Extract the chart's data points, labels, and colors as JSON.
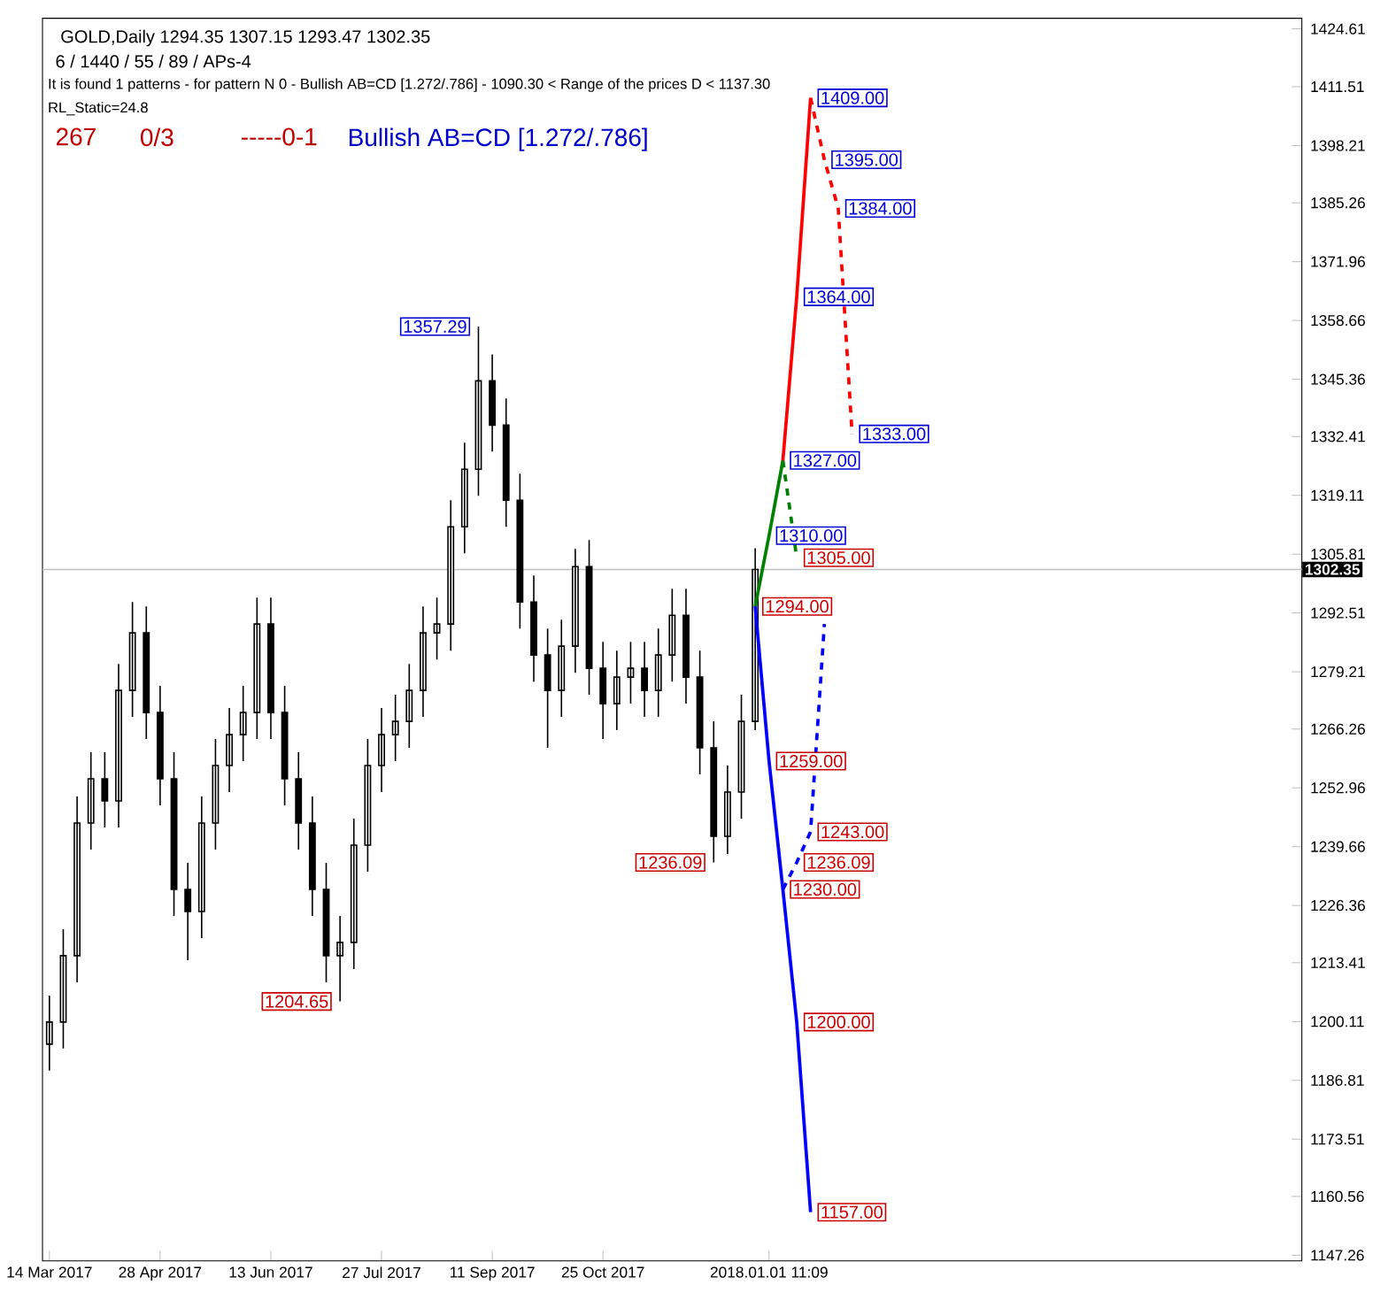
{
  "chart_data": {
    "type": "candlestick",
    "title": "GOLD,Daily 1294.35 1307.15 1293.47 1302.35",
    "subtitle": "6 / 1440 / 55 / 89 / APs-4",
    "categories": [
      "14 Mar 2017",
      null,
      null,
      null,
      null,
      null,
      null,
      null,
      "28 Apr 2017",
      null,
      null,
      null,
      null,
      null,
      null,
      null,
      "13 Jun 2017",
      null,
      null,
      null,
      null,
      null,
      null,
      null,
      "27 Jul 2017",
      null,
      null,
      null,
      null,
      null,
      null,
      null,
      "11 Sep 2017",
      null,
      null,
      null,
      null,
      null,
      null,
      null,
      "25 Oct 2017",
      null,
      null,
      null,
      null,
      null,
      null,
      null,
      null,
      null,
      null,
      null,
      "2018.01.01 11:09",
      null,
      null,
      null,
      null,
      null,
      null,
      null,
      null,
      null,
      null,
      null,
      null,
      null,
      null,
      null,
      null,
      null,
      null,
      null,
      null,
      null,
      null,
      null,
      null,
      null,
      null,
      null,
      null,
      null,
      null,
      null,
      null,
      null,
      null,
      null,
      null,
      null,
      null
    ],
    "ohlc": [
      [
        1195,
        1206,
        1189,
        1200
      ],
      [
        1200,
        1221,
        1194,
        1215
      ],
      [
        1215,
        1251,
        1209,
        1245
      ],
      [
        1245,
        1261,
        1239,
        1255
      ],
      [
        1255,
        1261,
        1244,
        1250
      ],
      [
        1250,
        1281,
        1244,
        1275
      ],
      [
        1275,
        1295,
        1269,
        1288
      ],
      [
        1288,
        1294,
        1264,
        1270
      ],
      [
        1270,
        1276,
        1249,
        1255
      ],
      [
        1255,
        1261,
        1224,
        1230
      ],
      [
        1230,
        1236,
        1214,
        1225
      ],
      [
        1225,
        1251,
        1219,
        1245
      ],
      [
        1245,
        1264,
        1239,
        1258
      ],
      [
        1258,
        1271,
        1252,
        1265
      ],
      [
        1265,
        1276,
        1259,
        1270
      ],
      [
        1270,
        1296,
        1264,
        1290
      ],
      [
        1290,
        1296,
        1264,
        1270
      ],
      [
        1270,
        1276,
        1249,
        1255
      ],
      [
        1255,
        1261,
        1239,
        1245
      ],
      [
        1245,
        1251,
        1224,
        1230
      ],
      [
        1230,
        1236,
        1209,
        1215
      ],
      [
        1215,
        1224,
        1204.65,
        1218
      ],
      [
        1218,
        1246,
        1212,
        1240
      ],
      [
        1240,
        1264,
        1234,
        1258
      ],
      [
        1258,
        1271,
        1252,
        1265
      ],
      [
        1265,
        1274,
        1259,
        1268
      ],
      [
        1268,
        1281,
        1262,
        1275
      ],
      [
        1275,
        1294,
        1269,
        1288
      ],
      [
        1288,
        1296,
        1282,
        1290
      ],
      [
        1290,
        1318,
        1284,
        1312
      ],
      [
        1312,
        1331,
        1306,
        1325
      ],
      [
        1325,
        1357.29,
        1319,
        1345
      ],
      [
        1345,
        1351,
        1329,
        1335
      ],
      [
        1335,
        1341,
        1312,
        1318
      ],
      [
        1318,
        1324,
        1289,
        1295
      ],
      [
        1295,
        1301,
        1277,
        1283
      ],
      [
        1283,
        1289,
        1262,
        1275
      ],
      [
        1275,
        1291,
        1269,
        1285
      ],
      [
        1285,
        1307,
        1279,
        1303
      ],
      [
        1303,
        1309,
        1274,
        1280
      ],
      [
        1280,
        1286,
        1264,
        1272
      ],
      [
        1272,
        1284,
        1266,
        1278
      ],
      [
        1278,
        1286,
        1272,
        1280
      ],
      [
        1280,
        1286,
        1269,
        1275
      ],
      [
        1275,
        1289,
        1269,
        1283
      ],
      [
        1283,
        1298,
        1277,
        1292
      ],
      [
        1292,
        1298,
        1272,
        1278
      ],
      [
        1278,
        1284,
        1256,
        1262
      ],
      [
        1262,
        1268,
        1236.09,
        1242
      ],
      [
        1242,
        1258,
        1238,
        1252
      ],
      [
        1252,
        1274,
        1246,
        1268
      ],
      [
        1268,
        1307.15,
        1266,
        1302.35
      ],
      null,
      null,
      null,
      null,
      null,
      null,
      null,
      null,
      null,
      null,
      null,
      null,
      null,
      null,
      null,
      null,
      null,
      null,
      null,
      null,
      null,
      null,
      null,
      null,
      null,
      null,
      null,
      null,
      null,
      null,
      null,
      null,
      null,
      null,
      null,
      null,
      null,
      null,
      null
    ],
    "series": [
      {
        "type": "line",
        "color": "#008000",
        "line_style": "solid",
        "values": [
          null,
          null,
          null,
          null,
          null,
          null,
          null,
          null,
          null,
          null,
          null,
          null,
          null,
          null,
          null,
          null,
          null,
          null,
          null,
          null,
          null,
          null,
          null,
          null,
          null,
          null,
          null,
          null,
          null,
          null,
          null,
          null,
          null,
          null,
          null,
          null,
          null,
          null,
          null,
          null,
          null,
          null,
          null,
          null,
          null,
          null,
          null,
          null,
          null,
          null,
          null,
          1294,
          1310,
          1327,
          null,
          null,
          null,
          null,
          null,
          null,
          null,
          null,
          null,
          null,
          null,
          null,
          null,
          null,
          null,
          null,
          null,
          null,
          null,
          null,
          null,
          null,
          null,
          null,
          null,
          null,
          null,
          null,
          null,
          null,
          null,
          null,
          null,
          null,
          null,
          null,
          null
        ],
        "value_labels": [
          null,
          null,
          null,
          null,
          null,
          null,
          null,
          null,
          null,
          null,
          null,
          null,
          null,
          null,
          null,
          null,
          null,
          null,
          null,
          null,
          null,
          null,
          null,
          null,
          null,
          null,
          null,
          null,
          null,
          null,
          null,
          null,
          null,
          null,
          null,
          null,
          null,
          null,
          null,
          null,
          null,
          null,
          null,
          null,
          null,
          null,
          null,
          null,
          null,
          null,
          null,
          null,
          "1310.00",
          null,
          null,
          null,
          null,
          null,
          null,
          null,
          null,
          null,
          null,
          null,
          null,
          null,
          null,
          null,
          null,
          null,
          null,
          null,
          null,
          null,
          null,
          null,
          null,
          null,
          null,
          null,
          null,
          null,
          null,
          null,
          null,
          null,
          null,
          null,
          null,
          null,
          null
        ]
      },
      {
        "type": "line",
        "color": "#008000",
        "line_style": "dashed",
        "values": [
          null,
          null,
          null,
          null,
          null,
          null,
          null,
          null,
          null,
          null,
          null,
          null,
          null,
          null,
          null,
          null,
          null,
          null,
          null,
          null,
          null,
          null,
          null,
          null,
          null,
          null,
          null,
          null,
          null,
          null,
          null,
          null,
          null,
          null,
          null,
          null,
          null,
          null,
          null,
          null,
          null,
          null,
          null,
          null,
          null,
          null,
          null,
          null,
          null,
          null,
          null,
          null,
          null,
          1327,
          1305,
          null,
          null,
          null,
          null,
          null,
          null,
          null,
          null,
          null,
          null,
          null,
          null,
          null,
          null,
          null,
          null,
          null,
          null,
          null,
          null,
          null,
          null,
          null,
          null,
          null,
          null,
          null,
          null,
          null,
          null,
          null,
          null,
          null,
          null,
          null,
          null
        ],
        "value_labels": [
          null,
          null,
          null,
          null,
          null,
          null,
          null,
          null,
          null,
          null,
          null,
          null,
          null,
          null,
          null,
          null,
          null,
          null,
          null,
          null,
          null,
          null,
          null,
          null,
          null,
          null,
          null,
          null,
          null,
          null,
          null,
          null,
          null,
          null,
          null,
          null,
          null,
          null,
          null,
          null,
          null,
          null,
          null,
          null,
          null,
          null,
          null,
          null,
          null,
          null,
          null,
          null,
          null,
          null,
          "1305.00",
          null,
          null,
          null,
          null,
          null,
          null,
          null,
          null,
          null,
          null,
          null,
          null,
          null,
          null,
          null,
          null,
          null,
          null,
          null,
          null,
          null,
          null,
          null,
          null,
          null,
          null,
          null,
          null,
          null,
          null,
          null,
          null,
          null,
          null,
          null,
          null
        ]
      },
      {
        "type": "line",
        "color": "#ff0000",
        "line_style": "solid",
        "values": [
          null,
          null,
          null,
          null,
          null,
          null,
          null,
          null,
          null,
          null,
          null,
          null,
          null,
          null,
          null,
          null,
          null,
          null,
          null,
          null,
          null,
          null,
          null,
          null,
          null,
          null,
          null,
          null,
          null,
          null,
          null,
          null,
          null,
          null,
          null,
          null,
          null,
          null,
          null,
          null,
          null,
          null,
          null,
          null,
          null,
          null,
          null,
          null,
          null,
          null,
          null,
          null,
          null,
          1327,
          1364,
          1409,
          null,
          null,
          null,
          null,
          null,
          null,
          null,
          null,
          null,
          null,
          null,
          null,
          null,
          null,
          null,
          null,
          null,
          null,
          null,
          null,
          null,
          null,
          null,
          null,
          null,
          null,
          null,
          null,
          null,
          null,
          null,
          null,
          null,
          null,
          null
        ],
        "value_labels": [
          null,
          null,
          null,
          null,
          null,
          null,
          null,
          null,
          null,
          null,
          null,
          null,
          null,
          null,
          null,
          null,
          null,
          null,
          null,
          null,
          null,
          null,
          null,
          null,
          null,
          null,
          null,
          null,
          null,
          null,
          null,
          null,
          null,
          null,
          null,
          null,
          null,
          null,
          null,
          null,
          null,
          null,
          null,
          null,
          null,
          null,
          null,
          null,
          null,
          null,
          null,
          null,
          null,
          "1327.00",
          "1364.00",
          "1409.00",
          null,
          null,
          null,
          null,
          null,
          null,
          null,
          null,
          null,
          null,
          null,
          null,
          null,
          null,
          null,
          null,
          null,
          null,
          null,
          null,
          null,
          null,
          null,
          null,
          null,
          null,
          null,
          null,
          null,
          null,
          null,
          null,
          null,
          null,
          null
        ]
      },
      {
        "type": "line",
        "color": "#ff0000",
        "line_style": "dashed",
        "values": [
          null,
          null,
          null,
          null,
          null,
          null,
          null,
          null,
          null,
          null,
          null,
          null,
          null,
          null,
          null,
          null,
          null,
          null,
          null,
          null,
          null,
          null,
          null,
          null,
          null,
          null,
          null,
          null,
          null,
          null,
          null,
          null,
          null,
          null,
          null,
          null,
          null,
          null,
          null,
          null,
          null,
          null,
          null,
          null,
          null,
          null,
          null,
          null,
          null,
          null,
          null,
          null,
          null,
          null,
          null,
          1409,
          1395,
          1384,
          1333,
          null,
          null,
          null,
          null,
          null,
          null,
          null,
          null,
          null,
          null,
          null,
          null,
          null,
          null,
          null,
          null,
          null,
          null,
          null,
          null,
          null,
          null,
          null,
          null,
          null,
          null,
          null,
          null,
          null,
          null,
          null,
          null
        ],
        "value_labels": [
          null,
          null,
          null,
          null,
          null,
          null,
          null,
          null,
          null,
          null,
          null,
          null,
          null,
          null,
          null,
          null,
          null,
          null,
          null,
          null,
          null,
          null,
          null,
          null,
          null,
          null,
          null,
          null,
          null,
          null,
          null,
          null,
          null,
          null,
          null,
          null,
          null,
          null,
          null,
          null,
          null,
          null,
          null,
          null,
          null,
          null,
          null,
          null,
          null,
          null,
          null,
          null,
          null,
          null,
          null,
          null,
          "1395.00",
          "1384.00",
          "1333.00",
          null,
          null,
          null,
          null,
          null,
          null,
          null,
          null,
          null,
          null,
          null,
          null,
          null,
          null,
          null,
          null,
          null,
          null,
          null,
          null,
          null,
          null,
          null,
          null,
          null,
          null,
          null,
          null,
          null,
          null,
          null,
          null
        ]
      },
      {
        "type": "line",
        "color": "#0000ff",
        "line_style": "solid",
        "values": [
          null,
          null,
          null,
          null,
          null,
          null,
          null,
          null,
          null,
          null,
          null,
          null,
          null,
          null,
          null,
          null,
          null,
          null,
          null,
          null,
          null,
          null,
          null,
          null,
          null,
          null,
          null,
          null,
          null,
          null,
          null,
          null,
          null,
          null,
          null,
          null,
          null,
          null,
          null,
          null,
          null,
          null,
          null,
          null,
          null,
          null,
          null,
          null,
          null,
          null,
          null,
          1294,
          1259,
          1230,
          1200,
          1157,
          null,
          null,
          null,
          null,
          null,
          null,
          null,
          null,
          null,
          null,
          null,
          null,
          null,
          null,
          null,
          null,
          null,
          null,
          null,
          null,
          null,
          null,
          null,
          null,
          null,
          null,
          null,
          null,
          null,
          null,
          null,
          null,
          null,
          null,
          null
        ],
        "value_labels": [
          null,
          null,
          null,
          null,
          null,
          null,
          null,
          null,
          null,
          null,
          null,
          null,
          null,
          null,
          null,
          null,
          null,
          null,
          null,
          null,
          null,
          null,
          null,
          null,
          null,
          null,
          null,
          null,
          null,
          null,
          null,
          null,
          null,
          null,
          null,
          null,
          null,
          null,
          null,
          null,
          null,
          null,
          null,
          null,
          null,
          null,
          null,
          null,
          null,
          null,
          null,
          "1294.00",
          "1259.00",
          "1230.00",
          "1200.00",
          "1157.00",
          null,
          null,
          null,
          null,
          null,
          null,
          null,
          null,
          null,
          null,
          null,
          null,
          null,
          null,
          null,
          null,
          null,
          null,
          null,
          null,
          null,
          null,
          null,
          null,
          null,
          null,
          null,
          null,
          null,
          null,
          null,
          null,
          null,
          null,
          null
        ]
      },
      {
        "type": "line",
        "color": "#0000ff",
        "line_style": "dashed",
        "values": [
          null,
          null,
          null,
          null,
          null,
          null,
          null,
          null,
          null,
          null,
          null,
          null,
          null,
          null,
          null,
          null,
          null,
          null,
          null,
          null,
          null,
          null,
          null,
          null,
          null,
          null,
          null,
          null,
          null,
          null,
          null,
          null,
          null,
          null,
          null,
          null,
          null,
          null,
          null,
          null,
          null,
          null,
          null,
          null,
          null,
          null,
          null,
          null,
          null,
          null,
          null,
          null,
          null,
          1230,
          1236.09,
          1243,
          1290,
          null,
          null,
          null,
          null,
          null,
          null,
          null,
          null,
          null,
          null,
          null,
          null,
          null,
          null,
          null,
          null,
          null,
          null,
          null,
          null,
          null,
          null,
          null,
          null,
          null,
          null,
          null,
          null,
          null,
          null,
          null,
          null,
          null,
          null
        ],
        "value_labels": [
          null,
          null,
          null,
          null,
          null,
          null,
          null,
          null,
          null,
          null,
          null,
          null,
          null,
          null,
          null,
          null,
          null,
          null,
          null,
          null,
          null,
          null,
          null,
          null,
          null,
          null,
          null,
          null,
          null,
          null,
          null,
          null,
          null,
          null,
          null,
          null,
          null,
          null,
          null,
          null,
          null,
          null,
          null,
          null,
          null,
          null,
          null,
          null,
          null,
          null,
          null,
          null,
          null,
          null,
          "1236.09",
          "1243.00",
          null,
          null,
          null,
          null,
          null,
          null,
          null,
          null,
          null,
          null,
          null,
          null,
          null,
          null,
          null,
          null,
          null,
          null,
          null,
          null,
          null,
          null,
          null,
          null,
          null,
          null,
          null,
          null,
          null,
          null,
          null,
          null,
          null,
          null,
          null
        ]
      }
    ],
    "marker": "none",
    "ylim": [
      1146,
      1427
    ],
    "yticks": [
      1147.26,
      1160.56,
      1173.51,
      1186.81,
      1200.11,
      1213.41,
      1226.36,
      1239.66,
      1252.96,
      1266.26,
      1279.21,
      1292.51,
      1305.81,
      1319.11,
      1332.41,
      1345.36,
      1358.66,
      1371.96,
      1385.26,
      1398.21,
      1411.51,
      1424.61
    ],
    "ref_lines": [
      {
        "axis": "y",
        "value": 1302.35,
        "label": "1302.35",
        "color": "#c0c0c0"
      }
    ],
    "annotations": [
      "It is found 1 patterns  -  for pattern N 0 - Bullish AB=CD [1.272/.786] - 1090.30 < Range of the prices D < 1137.30",
      "RL_Static=24.8",
      "267",
      "0/3",
      "-----0-1",
      "Bullish AB=CD [1.272/.786]",
      "1357.29",
      "1204.65",
      "1236.09"
    ]
  }
}
